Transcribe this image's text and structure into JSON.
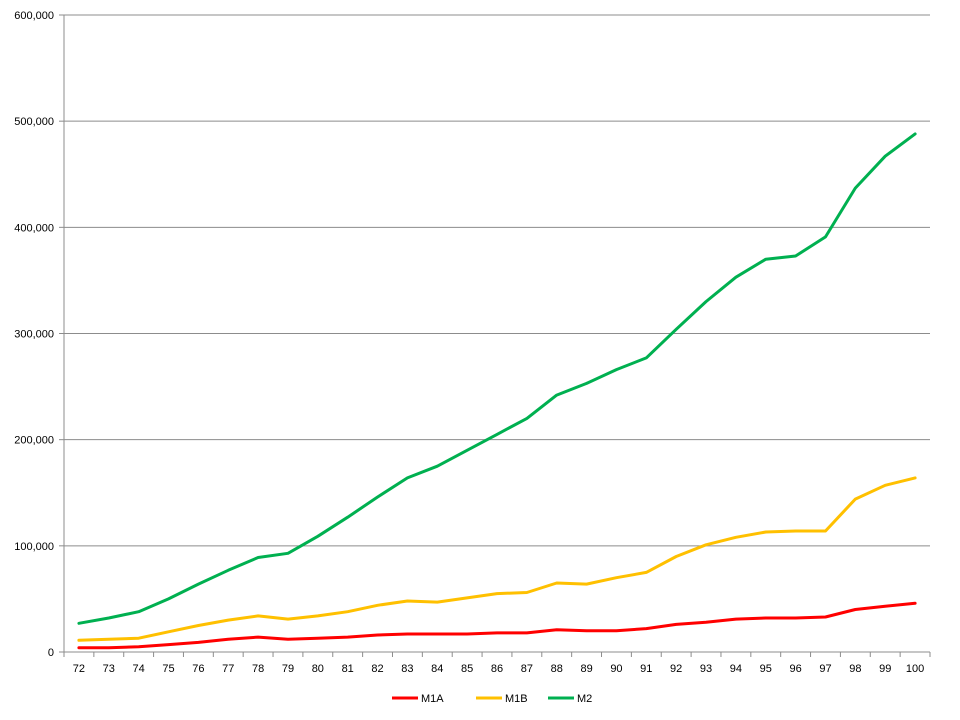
{
  "chart_data": {
    "type": "line",
    "title": "",
    "xlabel": "",
    "ylabel": "",
    "ylim": [
      0,
      600000
    ],
    "yticks": [
      0,
      100000,
      200000,
      300000,
      400000,
      500000,
      600000
    ],
    "ytick_labels": [
      "0",
      "100,000",
      "200,000",
      "300,000",
      "400,000",
      "500,000",
      "600,000"
    ],
    "grid": "horizontal",
    "legend_position": "bottom",
    "categories": [
      "72",
      "73",
      "74",
      "75",
      "76",
      "77",
      "78",
      "79",
      "80",
      "81",
      "82",
      "83",
      "84",
      "85",
      "86",
      "87",
      "88",
      "89",
      "90",
      "91",
      "92",
      "93",
      "94",
      "95",
      "96",
      "97",
      "98",
      "99",
      "100"
    ],
    "series": [
      {
        "name": "M1A",
        "color": "#ff0000",
        "values": [
          4000,
          4000,
          5000,
          7000,
          9000,
          12000,
          14000,
          12000,
          13000,
          14000,
          16000,
          17000,
          17000,
          17000,
          18000,
          18000,
          21000,
          20000,
          20000,
          22000,
          26000,
          28000,
          31000,
          32000,
          32000,
          33000,
          40000,
          43000,
          46000
        ]
      },
      {
        "name": "M1B",
        "color": "#ffc000",
        "values": [
          11000,
          12000,
          13000,
          19000,
          25000,
          30000,
          34000,
          31000,
          34000,
          38000,
          44000,
          48000,
          47000,
          51000,
          55000,
          56000,
          65000,
          64000,
          70000,
          75000,
          90000,
          101000,
          108000,
          113000,
          114000,
          114000,
          144000,
          157000,
          164000
        ]
      },
      {
        "name": "M2",
        "color": "#00b050",
        "values": [
          27000,
          32000,
          38000,
          50000,
          64000,
          77000,
          89000,
          93000,
          109000,
          127000,
          146000,
          164000,
          175000,
          190000,
          205000,
          220000,
          242000,
          253000,
          266000,
          277000,
          304000,
          330000,
          353000,
          370000,
          373000,
          391000,
          437000,
          467000,
          488000
        ]
      }
    ]
  }
}
